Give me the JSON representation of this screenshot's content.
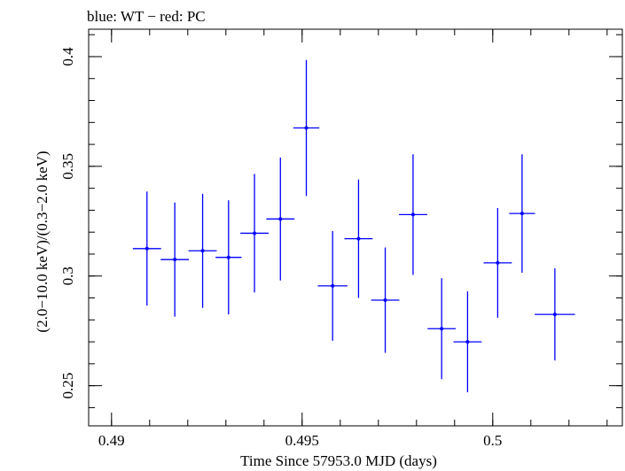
{
  "chart_data": {
    "type": "scatter",
    "title": "blue: WT − red: PC",
    "xlabel": "Time Since 57953.0 MJD (days)",
    "ylabel": "(2.0−10.0 keV)/(0.3−2.0 keV)",
    "xlim": [
      0.4894,
      0.5034
    ],
    "ylim": [
      0.2317,
      0.4125
    ],
    "xticks": [
      {
        "value": 0.49,
        "label": "0.49"
      },
      {
        "value": 0.495,
        "label": "0.495"
      },
      {
        "value": 0.5,
        "label": "0.5"
      }
    ],
    "yticks": [
      {
        "value": 0.25,
        "label": "0.25"
      },
      {
        "value": 0.3,
        "label": "0.3"
      },
      {
        "value": 0.35,
        "label": "0.35"
      },
      {
        "value": 0.4,
        "label": "0.4"
      }
    ],
    "grid": false,
    "series": [
      {
        "color": "#0000ff",
        "points": [
          {
            "x": 0.49093,
            "xerr": 0.00037,
            "y": 0.3125,
            "yerr": 0.026
          },
          {
            "x": 0.49166,
            "xerr": 0.00037,
            "y": 0.3075,
            "yerr": 0.026
          },
          {
            "x": 0.49239,
            "xerr": 0.00037,
            "y": 0.3115,
            "yerr": 0.026
          },
          {
            "x": 0.49307,
            "xerr": 0.00034,
            "y": 0.3085,
            "yerr": 0.026
          },
          {
            "x": 0.49375,
            "xerr": 0.00037,
            "y": 0.3195,
            "yerr": 0.027
          },
          {
            "x": 0.49443,
            "xerr": 0.00037,
            "y": 0.326,
            "yerr": 0.028
          },
          {
            "x": 0.49511,
            "xerr": 0.00034,
            "y": 0.3675,
            "yerr": 0.031
          },
          {
            "x": 0.4958,
            "xerr": 0.00039,
            "y": 0.2955,
            "yerr": 0.025
          },
          {
            "x": 0.49648,
            "xerr": 0.00037,
            "y": 0.317,
            "yerr": 0.027
          },
          {
            "x": 0.49718,
            "xerr": 0.00037,
            "y": 0.289,
            "yerr": 0.024
          },
          {
            "x": 0.49791,
            "xerr": 0.00037,
            "y": 0.328,
            "yerr": 0.0275
          },
          {
            "x": 0.49866,
            "xerr": 0.00037,
            "y": 0.276,
            "yerr": 0.023
          },
          {
            "x": 0.49934,
            "xerr": 0.00037,
            "y": 0.27,
            "yerr": 0.023
          },
          {
            "x": 0.50013,
            "xerr": 0.00037,
            "y": 0.306,
            "yerr": 0.025
          },
          {
            "x": 0.50077,
            "xerr": 0.00034,
            "y": 0.3285,
            "yerr": 0.027
          },
          {
            "x": 0.50163,
            "xerr": 0.00053,
            "y": 0.2825,
            "yerr": 0.021
          }
        ]
      }
    ]
  }
}
